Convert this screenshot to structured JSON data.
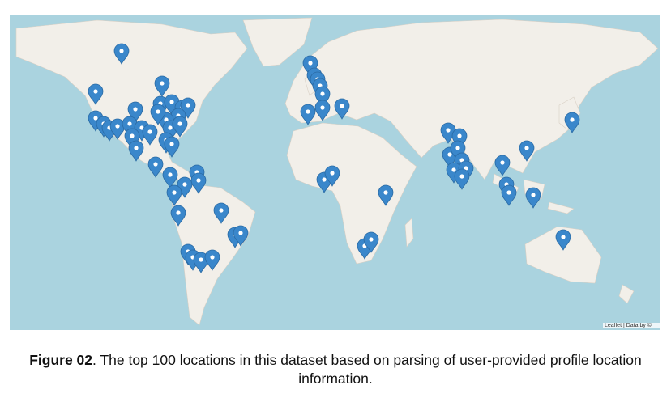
{
  "map": {
    "attribution": "Leaflet | Data by ©"
  },
  "caption": {
    "label": "Figure 02",
    "text": ". The top 100 locations in this dataset based on parsing of user-provided profile location information."
  }
}
